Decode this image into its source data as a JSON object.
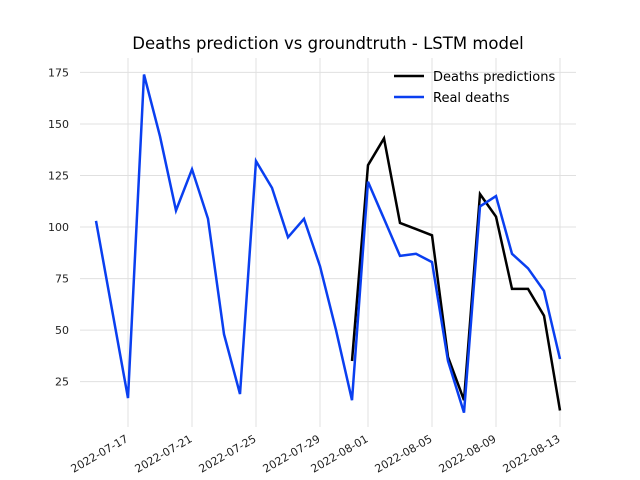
{
  "chart_data": {
    "type": "line",
    "title": "Deaths prediction vs groundtruth - LSTM model",
    "xlabel": "",
    "ylabel": "",
    "x_ticks": [
      "2022-07-17",
      "2022-07-21",
      "2022-07-25",
      "2022-07-29",
      "2022-08-01",
      "2022-08-05",
      "2022-08-09",
      "2022-08-13"
    ],
    "y_ticks": [
      25,
      50,
      75,
      100,
      125,
      150,
      175
    ],
    "xlim": [
      "2022-07-14",
      "2022-08-14"
    ],
    "ylim": [
      3,
      182
    ],
    "grid": true,
    "legend_position": "top-right",
    "series": [
      {
        "name": "Deaths predictions",
        "color": "#000000",
        "points": [
          [
            "2022-07-31",
            35
          ],
          [
            "2022-08-01",
            130
          ],
          [
            "2022-08-02",
            143
          ],
          [
            "2022-08-03",
            102
          ],
          [
            "2022-08-04",
            99
          ],
          [
            "2022-08-05",
            96
          ],
          [
            "2022-08-06",
            37
          ],
          [
            "2022-08-07",
            16
          ],
          [
            "2022-08-08",
            116
          ],
          [
            "2022-08-09",
            105
          ],
          [
            "2022-08-10",
            70
          ],
          [
            "2022-08-11",
            70
          ],
          [
            "2022-08-12",
            57
          ],
          [
            "2022-08-13",
            11
          ]
        ]
      },
      {
        "name": "Real deaths",
        "color": "#0a3ff0",
        "points": [
          [
            "2022-07-15",
            103
          ],
          [
            "2022-07-16",
            60
          ],
          [
            "2022-07-17",
            17
          ],
          [
            "2022-07-18",
            174
          ],
          [
            "2022-07-19",
            144
          ],
          [
            "2022-07-20",
            108
          ],
          [
            "2022-07-21",
            128
          ],
          [
            "2022-07-22",
            104
          ],
          [
            "2022-07-23",
            48
          ],
          [
            "2022-07-24",
            19
          ],
          [
            "2022-07-25",
            132
          ],
          [
            "2022-07-26",
            119
          ],
          [
            "2022-07-27",
            95
          ],
          [
            "2022-07-28",
            104
          ],
          [
            "2022-07-29",
            81
          ],
          [
            "2022-07-30",
            50
          ],
          [
            "2022-07-31",
            16
          ],
          [
            "2022-08-01",
            122
          ],
          [
            "2022-08-02",
            104
          ],
          [
            "2022-08-03",
            86
          ],
          [
            "2022-08-04",
            87
          ],
          [
            "2022-08-05",
            83
          ],
          [
            "2022-08-06",
            35
          ],
          [
            "2022-08-07",
            10
          ],
          [
            "2022-08-08",
            110
          ],
          [
            "2022-08-09",
            115
          ],
          [
            "2022-08-10",
            87
          ],
          [
            "2022-08-11",
            80
          ],
          [
            "2022-08-12",
            69
          ],
          [
            "2022-08-13",
            36
          ]
        ]
      }
    ]
  }
}
